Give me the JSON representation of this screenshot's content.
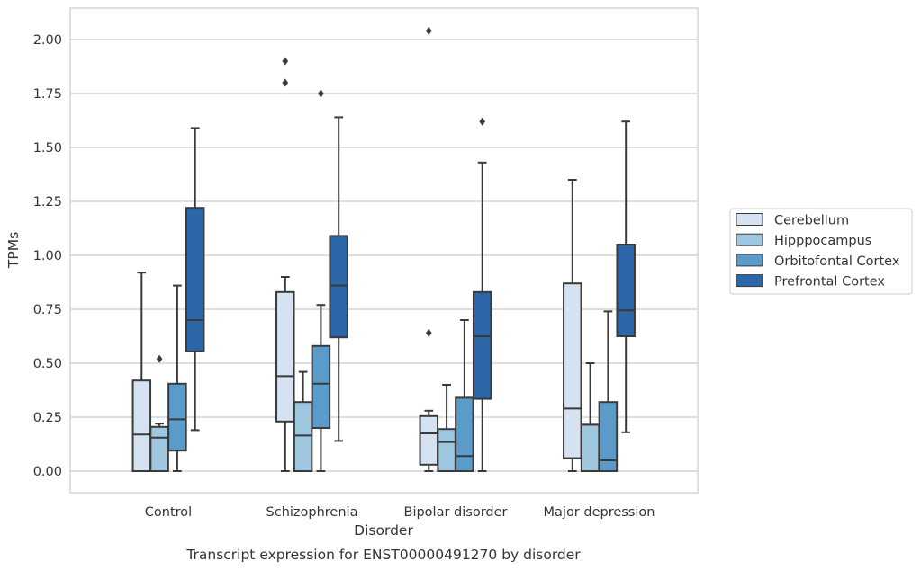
{
  "chart_data": {
    "type": "box",
    "xlabel": "Disorder",
    "ylabel": "TPMs",
    "caption": "Transcript expression for ENST00000491270 by disorder",
    "ylim": [
      -0.1,
      2.15
    ],
    "yticks": [
      "0.00",
      "0.25",
      "0.50",
      "0.75",
      "1.00",
      "1.25",
      "1.50",
      "1.75",
      "2.00"
    ],
    "grid": "horizontal",
    "legend_position": "right",
    "categories": [
      "Control",
      "Schizophrenia",
      "Bipolar disorder",
      "Major depression"
    ],
    "series": [
      {
        "name": "Cerebellum",
        "color": "#d4e2f1",
        "boxes": [
          {
            "whislo": 0.0,
            "q1": 0.0,
            "med": 0.17,
            "q3": 0.42,
            "whishi": 0.92,
            "fliers": []
          },
          {
            "whislo": 0.0,
            "q1": 0.23,
            "med": 0.44,
            "q3": 0.83,
            "whishi": 0.9,
            "fliers": [
              1.9,
              1.8
            ]
          },
          {
            "whislo": 0.0,
            "q1": 0.03,
            "med": 0.175,
            "q3": 0.255,
            "whishi": 0.28,
            "fliers": [
              0.64,
              2.04
            ]
          },
          {
            "whislo": 0.0,
            "q1": 0.06,
            "med": 0.29,
            "q3": 0.87,
            "whishi": 1.35,
            "fliers": []
          }
        ]
      },
      {
        "name": "Hipppocampus",
        "color": "#9fc8e0",
        "boxes": [
          {
            "whislo": 0.0,
            "q1": 0.0,
            "med": 0.155,
            "q3": 0.205,
            "whishi": 0.22,
            "fliers": [
              0.52
            ]
          },
          {
            "whislo": 0.0,
            "q1": 0.0,
            "med": 0.165,
            "q3": 0.32,
            "whishi": 0.46,
            "fliers": []
          },
          {
            "whislo": 0.0,
            "q1": 0.0,
            "med": 0.135,
            "q3": 0.195,
            "whishi": 0.4,
            "fliers": []
          },
          {
            "whislo": 0.0,
            "q1": 0.0,
            "med": 0.215,
            "q3": 0.215,
            "whishi": 0.5,
            "fliers": []
          }
        ]
      },
      {
        "name": "Orbitofontal Cortex",
        "color": "#5a9bc9",
        "boxes": [
          {
            "whislo": 0.0,
            "q1": 0.095,
            "med": 0.24,
            "q3": 0.405,
            "whishi": 0.86,
            "fliers": []
          },
          {
            "whislo": 0.0,
            "q1": 0.2,
            "med": 0.405,
            "q3": 0.58,
            "whishi": 0.77,
            "fliers": [
              1.75
            ]
          },
          {
            "whislo": 0.0,
            "q1": 0.0,
            "med": 0.07,
            "q3": 0.34,
            "whishi": 0.7,
            "fliers": []
          },
          {
            "whislo": 0.0,
            "q1": 0.0,
            "med": 0.05,
            "q3": 0.32,
            "whishi": 0.74,
            "fliers": []
          }
        ]
      },
      {
        "name": "Prefrontal Cortex",
        "color": "#2b67a8",
        "boxes": [
          {
            "whislo": 0.19,
            "q1": 0.555,
            "med": 0.7,
            "q3": 1.22,
            "whishi": 1.59,
            "fliers": []
          },
          {
            "whislo": 0.14,
            "q1": 0.62,
            "med": 0.86,
            "q3": 1.09,
            "whishi": 1.64,
            "fliers": []
          },
          {
            "whislo": 0.0,
            "q1": 0.335,
            "med": 0.625,
            "q3": 0.83,
            "whishi": 1.43,
            "fliers": [
              1.62
            ]
          },
          {
            "whislo": 0.18,
            "q1": 0.625,
            "med": 0.745,
            "q3": 1.05,
            "whishi": 1.62,
            "fliers": []
          }
        ]
      }
    ]
  }
}
